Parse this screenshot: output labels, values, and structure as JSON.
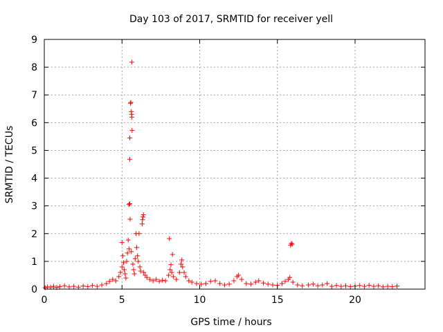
{
  "chart_data": {
    "type": "scatter",
    "title": "Day 103 of 2017, SRMTID for receiver yell",
    "xlabel": "GPS time / hours",
    "ylabel": "SRMTID / TECUs",
    "xlim": [
      0,
      24.5
    ],
    "ylim": [
      0,
      9
    ],
    "xticks": [
      0,
      5,
      10,
      15,
      20
    ],
    "yticks": [
      0,
      1,
      2,
      3,
      4,
      5,
      6,
      7,
      8,
      9
    ],
    "grid": true,
    "marker": "+",
    "color": "#ff0000",
    "series": [
      {
        "values": [
          [
            0.05,
            0.05
          ],
          [
            0.2,
            0.08
          ],
          [
            0.4,
            0.07
          ],
          [
            0.6,
            0.1
          ],
          [
            0.8,
            0.06
          ],
          [
            1.0,
            0.09
          ],
          [
            1.3,
            0.12
          ],
          [
            1.6,
            0.08
          ],
          [
            1.9,
            0.1
          ],
          [
            2.2,
            0.07
          ],
          [
            2.5,
            0.11
          ],
          [
            2.8,
            0.09
          ],
          [
            3.1,
            0.13
          ],
          [
            3.4,
            0.1
          ],
          [
            3.7,
            0.15
          ],
          [
            4.0,
            0.2
          ],
          [
            4.2,
            0.28
          ],
          [
            4.4,
            0.35
          ],
          [
            4.6,
            0.3
          ],
          [
            4.8,
            0.45
          ],
          [
            4.9,
            0.6
          ],
          [
            5.0,
            0.8
          ],
          [
            5.0,
            1.68
          ],
          [
            5.05,
            1.2
          ],
          [
            5.1,
            0.95
          ],
          [
            5.15,
            0.7
          ],
          [
            5.2,
            0.55
          ],
          [
            5.25,
            0.4
          ],
          [
            5.3,
            1.0
          ],
          [
            5.35,
            1.3
          ],
          [
            5.4,
            1.77
          ],
          [
            5.45,
            1.45
          ],
          [
            5.45,
            3.05
          ],
          [
            5.5,
            3.08
          ],
          [
            5.5,
            4.68
          ],
          [
            5.5,
            5.45
          ],
          [
            5.52,
            2.52
          ],
          [
            5.55,
            6.7
          ],
          [
            5.57,
            6.73
          ],
          [
            5.6,
            1.35
          ],
          [
            5.6,
            6.4
          ],
          [
            5.62,
            6.3
          ],
          [
            5.63,
            6.2
          ],
          [
            5.65,
            5.72
          ],
          [
            5.63,
            8.18
          ],
          [
            5.7,
            0.9
          ],
          [
            5.75,
            0.7
          ],
          [
            5.8,
            0.55
          ],
          [
            5.85,
            1.1
          ],
          [
            5.9,
            2.0
          ],
          [
            5.95,
            1.5
          ],
          [
            6.0,
            1.2
          ],
          [
            6.05,
            1.0
          ],
          [
            6.1,
            2.0
          ],
          [
            6.15,
            0.8
          ],
          [
            6.2,
            0.65
          ],
          [
            6.3,
            2.35
          ],
          [
            6.32,
            2.5
          ],
          [
            6.35,
            2.6
          ],
          [
            6.38,
            2.68
          ],
          [
            6.4,
            0.6
          ],
          [
            6.5,
            0.5
          ],
          [
            6.6,
            0.42
          ],
          [
            6.8,
            0.35
          ],
          [
            7.0,
            0.3
          ],
          [
            7.2,
            0.35
          ],
          [
            7.4,
            0.28
          ],
          [
            7.6,
            0.32
          ],
          [
            7.8,
            0.3
          ],
          [
            8.0,
            0.5
          ],
          [
            8.05,
            1.82
          ],
          [
            8.1,
            0.7
          ],
          [
            8.15,
            0.88
          ],
          [
            8.2,
            0.6
          ],
          [
            8.25,
            1.25
          ],
          [
            8.3,
            0.45
          ],
          [
            8.5,
            0.35
          ],
          [
            8.7,
            0.6
          ],
          [
            8.8,
            0.9
          ],
          [
            8.85,
            1.05
          ],
          [
            8.9,
            0.8
          ],
          [
            9.0,
            0.6
          ],
          [
            9.1,
            0.45
          ],
          [
            9.3,
            0.3
          ],
          [
            9.5,
            0.25
          ],
          [
            9.8,
            0.2
          ],
          [
            10.1,
            0.18
          ],
          [
            10.4,
            0.2
          ],
          [
            10.7,
            0.28
          ],
          [
            11.0,
            0.3
          ],
          [
            11.3,
            0.2
          ],
          [
            11.6,
            0.15
          ],
          [
            11.9,
            0.18
          ],
          [
            12.2,
            0.3
          ],
          [
            12.4,
            0.45
          ],
          [
            12.5,
            0.5
          ],
          [
            12.7,
            0.35
          ],
          [
            13.0,
            0.2
          ],
          [
            13.3,
            0.18
          ],
          [
            13.6,
            0.25
          ],
          [
            13.8,
            0.3
          ],
          [
            14.1,
            0.22
          ],
          [
            14.4,
            0.18
          ],
          [
            14.7,
            0.15
          ],
          [
            15.0,
            0.14
          ],
          [
            15.3,
            0.2
          ],
          [
            15.5,
            0.28
          ],
          [
            15.7,
            0.35
          ],
          [
            15.8,
            0.42
          ],
          [
            15.85,
            1.58
          ],
          [
            15.9,
            1.65
          ],
          [
            15.95,
            1.62
          ],
          [
            16.0,
            0.25
          ],
          [
            16.3,
            0.15
          ],
          [
            16.6,
            0.12
          ],
          [
            17.0,
            0.15
          ],
          [
            17.3,
            0.18
          ],
          [
            17.6,
            0.12
          ],
          [
            17.9,
            0.15
          ],
          [
            18.2,
            0.2
          ],
          [
            18.5,
            0.1
          ],
          [
            18.8,
            0.13
          ],
          [
            19.1,
            0.1
          ],
          [
            19.4,
            0.12
          ],
          [
            19.7,
            0.09
          ],
          [
            20.0,
            0.11
          ],
          [
            20.3,
            0.13
          ],
          [
            20.6,
            0.1
          ],
          [
            20.9,
            0.14
          ],
          [
            21.2,
            0.1
          ],
          [
            21.5,
            0.12
          ],
          [
            21.8,
            0.08
          ],
          [
            22.1,
            0.1
          ],
          [
            22.4,
            0.09
          ],
          [
            22.7,
            0.11
          ]
        ]
      }
    ]
  }
}
